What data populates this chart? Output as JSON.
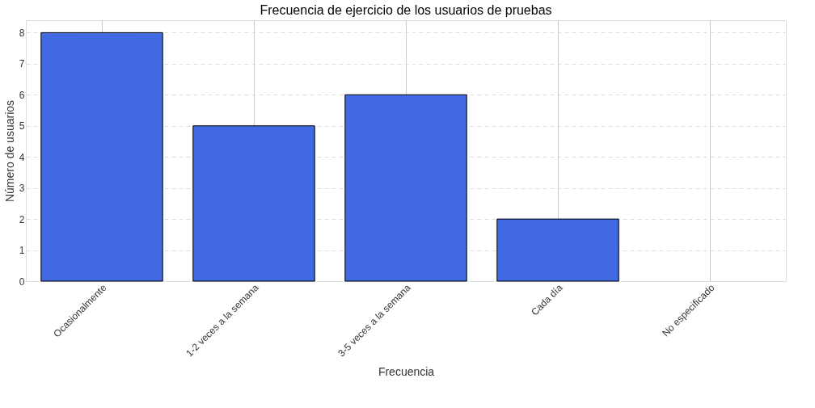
{
  "chart_data": {
    "type": "bar",
    "title": "Frecuencia de ejercicio de los usuarios de pruebas",
    "xlabel": "Frecuencia",
    "ylabel": "Número de usuarios",
    "categories": [
      "Ocasionalmente",
      "1-2 veces a la semana",
      "3-5 veces a la semana",
      "Cada día",
      "No especificado"
    ],
    "values": [
      8,
      5,
      6,
      2,
      0
    ],
    "color": "#4169e1",
    "ylim": [
      0,
      8.4
    ],
    "yticks": [
      0,
      1,
      2,
      3,
      4,
      5,
      6,
      7,
      8
    ],
    "grid": true
  }
}
